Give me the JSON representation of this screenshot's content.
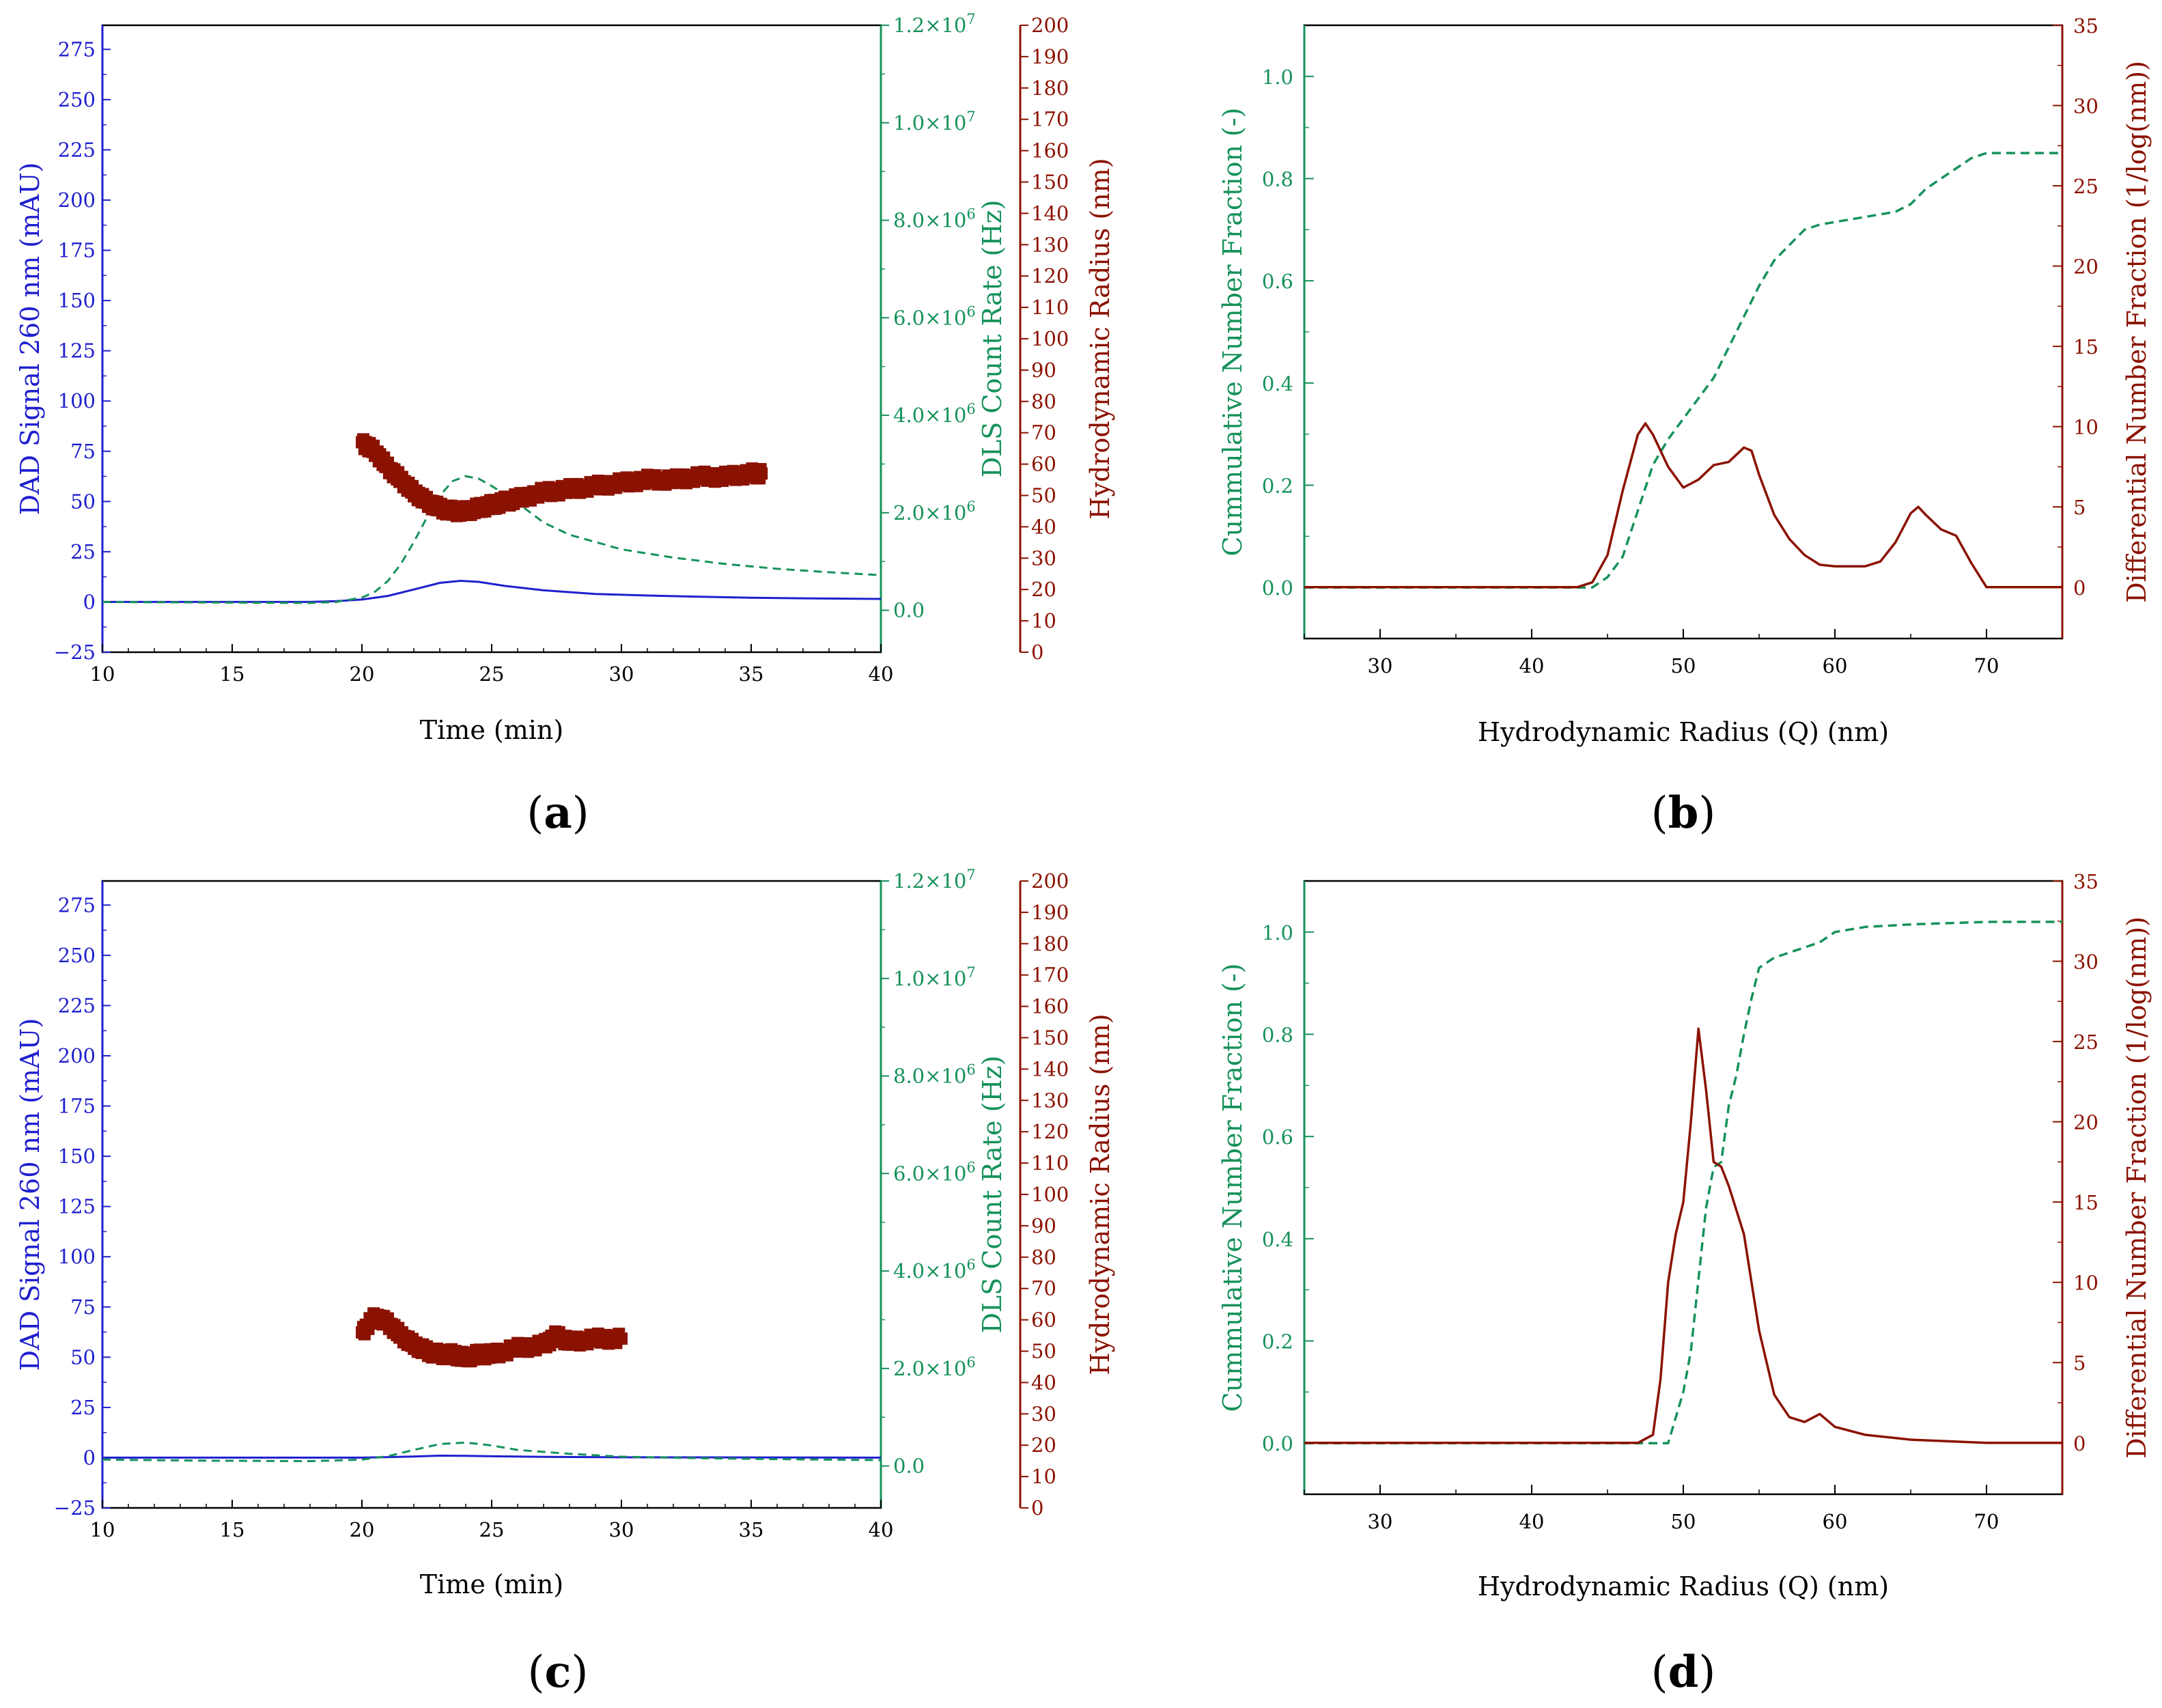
{
  "colors": {
    "blue": "#1f1fcf",
    "green": "#16925a",
    "red": "#8b1200",
    "axis": "#000000"
  },
  "panels": [
    {
      "id": "a",
      "label_open": "(",
      "label_letter": "a",
      "label_close": ")",
      "xlabel": "Time (min)",
      "ylabel_left": "DAD Signal 260 nm (mAU)",
      "ylabel_mid": "DLS Count Rate (Hz)",
      "ylabel_right": "Hydrodynamic Radius (nm)"
    },
    {
      "id": "b",
      "label_open": "(",
      "label_letter": "b",
      "label_close": ")",
      "xlabel": "Hydrodynamic Radius (Q) (nm)",
      "ylabel_left": "Cummulative Number Fraction (-)",
      "ylabel_right": "Differential Number Fraction (1/log(nm))"
    },
    {
      "id": "c",
      "label_open": "(",
      "label_letter": "c",
      "label_close": ")",
      "xlabel": "Time (min)",
      "ylabel_left": "DAD Signal 260 nm (mAU)",
      "ylabel_mid": "DLS Count Rate (Hz)",
      "ylabel_right": "Hydrodynamic Radius (nm)"
    },
    {
      "id": "d",
      "label_open": "(",
      "label_letter": "d",
      "label_close": ")",
      "xlabel": "Hydrodynamic Radius (Q) (nm)",
      "ylabel_left": "Cummulative Number Fraction (-)",
      "ylabel_right": "Differential Number Fraction (1/log(nm))"
    }
  ],
  "chart_data": [
    {
      "panel": "a",
      "type": "line",
      "x": {
        "label": "Time (min)",
        "lim": [
          10,
          40
        ],
        "ticks": [
          10,
          15,
          20,
          25,
          30,
          35,
          40
        ],
        "tick_labels": [
          "10",
          "15",
          "20",
          "25",
          "30",
          "35",
          "40"
        ]
      },
      "y_left": {
        "label": "DAD Signal 260 nm (mAU)",
        "lim": [
          -25,
          287
        ],
        "ticks": [
          -25,
          0,
          25,
          50,
          75,
          100,
          125,
          150,
          175,
          200,
          225,
          250,
          275
        ],
        "tick_labels": [
          "−25",
          "0",
          "25",
          "50",
          "75",
          "100",
          "125",
          "150",
          "175",
          "200",
          "225",
          "250",
          "275"
        ]
      },
      "y_mid": {
        "label": "DLS Count Rate (Hz)",
        "lim": [
          -860000,
          12000000
        ],
        "ticks": [
          0,
          2000000,
          4000000,
          6000000,
          8000000,
          10000000,
          12000000
        ],
        "tick_mant": [
          "0.0",
          "2.0",
          "4.0",
          "6.0",
          "8.0",
          "1.0",
          "1.2"
        ],
        "tick_exp": [
          "",
          "6",
          "6",
          "6",
          "6",
          "7",
          "7"
        ]
      },
      "y_right": {
        "label": "Hydrodynamic Radius (nm)",
        "lim": [
          0,
          200
        ],
        "ticks": [
          0,
          10,
          20,
          30,
          40,
          50,
          60,
          70,
          80,
          90,
          100,
          110,
          120,
          130,
          140,
          150,
          160,
          170,
          180,
          190,
          200
        ],
        "tick_labels": [
          "0",
          "10",
          "20",
          "30",
          "40",
          "50",
          "60",
          "70",
          "80",
          "90",
          "100",
          "110",
          "120",
          "130",
          "140",
          "150",
          "160",
          "170",
          "180",
          "190",
          "200"
        ]
      },
      "series": [
        {
          "name": "DAD Signal 260 nm",
          "axis": "left",
          "style": "solid",
          "color": "blue",
          "x": [
            10,
            18,
            19,
            20,
            21,
            22,
            23,
            23.8,
            24.5,
            25.5,
            27,
            29,
            31,
            33,
            35,
            37,
            40
          ],
          "y": [
            0,
            0,
            0.4,
            1.2,
            3,
            6.2,
            9.5,
            10.5,
            10,
            8,
            5.8,
            4,
            3.2,
            2.6,
            2.1,
            1.8,
            1.5
          ]
        },
        {
          "name": "DLS Count Rate",
          "axis": "mid",
          "style": "dashed",
          "color": "green",
          "x": [
            10,
            14,
            18,
            19,
            20,
            20.5,
            21,
            21.5,
            22,
            22.5,
            23,
            23.5,
            24,
            24.5,
            25,
            25.5,
            26,
            26.5,
            27,
            28,
            29,
            30,
            32,
            34,
            36,
            38,
            40
          ],
          "y": [
            170000,
            160000,
            150000,
            170000,
            260000,
            380000,
            600000,
            950000,
            1400000,
            1900000,
            2350000,
            2650000,
            2750000,
            2700000,
            2550000,
            2380000,
            2200000,
            2000000,
            1800000,
            1550000,
            1400000,
            1250000,
            1080000,
            950000,
            850000,
            780000,
            720000
          ]
        },
        {
          "name": "Hydrodynamic Radius",
          "axis": "right",
          "style": "markers",
          "color": "red",
          "x": [
            20,
            20.5,
            21,
            21.5,
            22,
            22.5,
            23,
            23.5,
            24,
            24.5,
            25,
            25.5,
            26,
            27,
            28,
            29,
            30,
            31,
            32,
            33,
            34,
            35,
            35.4
          ],
          "y": [
            67,
            64,
            59,
            55,
            51,
            48,
            46,
            45,
            45,
            46,
            47,
            48,
            49,
            51,
            52,
            53,
            54,
            55,
            55,
            56,
            56,
            57,
            57
          ]
        }
      ]
    },
    {
      "panel": "b",
      "type": "line",
      "x": {
        "label": "Hydrodynamic Radius (Q) (nm)",
        "lim": [
          25,
          75
        ],
        "ticks": [
          30,
          40,
          50,
          60,
          70
        ],
        "tick_labels": [
          "30",
          "40",
          "50",
          "60",
          "70"
        ]
      },
      "y_left": {
        "label": "Cummulative Number Fraction (-)",
        "lim": [
          -0.1,
          1.1
        ],
        "ticks": [
          0,
          0.2,
          0.4,
          0.6,
          0.8,
          1.0
        ],
        "tick_labels": [
          "0.0",
          "0.2",
          "0.4",
          "0.6",
          "0.8",
          "1.0"
        ]
      },
      "y_right": {
        "label": "Differential Number Fraction (1/log(nm))",
        "lim": [
          -3.2,
          35
        ],
        "ticks": [
          0,
          5,
          10,
          15,
          20,
          25,
          30,
          35
        ],
        "tick_labels": [
          "0",
          "5",
          "10",
          "15",
          "20",
          "25",
          "30",
          "35"
        ]
      },
      "series": [
        {
          "name": "Cumulative number fraction",
          "axis": "left",
          "style": "dashed",
          "color": "green",
          "x": [
            25,
            44,
            45,
            46,
            47,
            48,
            49,
            50,
            51,
            52,
            53,
            54,
            55,
            56,
            57,
            58,
            59,
            60,
            62,
            64,
            65,
            66,
            67,
            68,
            69,
            70,
            72,
            75
          ],
          "y": [
            0,
            0,
            0.02,
            0.06,
            0.15,
            0.24,
            0.29,
            0.33,
            0.37,
            0.41,
            0.47,
            0.53,
            0.59,
            0.64,
            0.67,
            0.7,
            0.71,
            0.715,
            0.725,
            0.735,
            0.75,
            0.78,
            0.8,
            0.82,
            0.84,
            0.85,
            0.85,
            0.85
          ]
        },
        {
          "name": "Differential number fraction",
          "axis": "right",
          "style": "solid",
          "color": "red",
          "x": [
            25,
            43,
            44,
            45,
            46,
            47,
            47.5,
            48,
            49,
            50,
            51,
            52,
            53,
            54,
            54.5,
            55,
            56,
            57,
            58,
            59,
            60,
            62,
            63,
            64,
            65,
            65.5,
            66,
            67,
            68,
            69,
            70,
            75
          ],
          "y": [
            0,
            0,
            0.3,
            2,
            6,
            9.5,
            10.2,
            9.5,
            7.5,
            6.2,
            6.7,
            7.6,
            7.8,
            8.7,
            8.5,
            7,
            4.5,
            3,
            2,
            1.4,
            1.3,
            1.3,
            1.6,
            2.8,
            4.6,
            5,
            4.5,
            3.6,
            3.2,
            1.5,
            0,
            0
          ]
        }
      ]
    },
    {
      "panel": "c",
      "type": "line",
      "x": {
        "label": "Time (min)",
        "lim": [
          10,
          40
        ],
        "ticks": [
          10,
          15,
          20,
          25,
          30,
          35,
          40
        ],
        "tick_labels": [
          "10",
          "15",
          "20",
          "25",
          "30",
          "35",
          "40"
        ]
      },
      "y_left": {
        "label": "DAD Signal 260 nm (mAU)",
        "lim": [
          -25,
          287
        ],
        "ticks": [
          -25,
          0,
          25,
          50,
          75,
          100,
          125,
          150,
          175,
          200,
          225,
          250,
          275
        ],
        "tick_labels": [
          "−25",
          "0",
          "25",
          "50",
          "75",
          "100",
          "125",
          "150",
          "175",
          "200",
          "225",
          "250",
          "275"
        ]
      },
      "y_mid": {
        "label": "DLS Count Rate (Hz)",
        "lim": [
          -860000,
          12000000
        ],
        "ticks": [
          0,
          2000000,
          4000000,
          6000000,
          8000000,
          10000000,
          12000000
        ],
        "tick_mant": [
          "0.0",
          "2.0",
          "4.0",
          "6.0",
          "8.0",
          "1.0",
          "1.2"
        ],
        "tick_exp": [
          "",
          "6",
          "6",
          "6",
          "6",
          "7",
          "7"
        ]
      },
      "y_right": {
        "label": "Hydrodynamic Radius (nm)",
        "lim": [
          0,
          200
        ],
        "ticks": [
          0,
          10,
          20,
          30,
          40,
          50,
          60,
          70,
          80,
          90,
          100,
          110,
          120,
          130,
          140,
          150,
          160,
          170,
          180,
          190,
          200
        ],
        "tick_labels": [
          "0",
          "10",
          "20",
          "30",
          "40",
          "50",
          "60",
          "70",
          "80",
          "90",
          "100",
          "110",
          "120",
          "130",
          "140",
          "150",
          "160",
          "170",
          "180",
          "190",
          "200"
        ]
      },
      "series": [
        {
          "name": "DAD Signal 260 nm",
          "axis": "left",
          "style": "solid",
          "color": "blue",
          "x": [
            10,
            20,
            21,
            22,
            23,
            24,
            25,
            27,
            30,
            35,
            40
          ],
          "y": [
            0,
            0,
            0.3,
            0.6,
            1,
            0.9,
            0.7,
            0.4,
            0.2,
            0.1,
            0
          ]
        },
        {
          "name": "DLS Count Rate",
          "axis": "mid",
          "style": "dashed",
          "color": "green",
          "x": [
            10,
            14,
            18,
            20,
            21,
            22,
            23,
            24,
            25,
            26,
            28,
            30,
            33,
            36,
            40
          ],
          "y": [
            130000,
            110000,
            100000,
            130000,
            200000,
            330000,
            450000,
            480000,
            420000,
            330000,
            250000,
            190000,
            160000,
            140000,
            120000
          ]
        },
        {
          "name": "Hydrodynamic Radius",
          "axis": "right",
          "style": "markers",
          "color": "red",
          "x": [
            20,
            20.5,
            21,
            21.5,
            22,
            22.5,
            23,
            23.5,
            24,
            24.5,
            25,
            26,
            27,
            27.5,
            28,
            29,
            30
          ],
          "y": [
            56,
            61,
            59,
            55,
            52,
            50,
            49,
            49,
            48,
            49,
            49,
            51,
            52,
            55,
            53,
            54,
            54
          ]
        }
      ]
    },
    {
      "panel": "d",
      "type": "line",
      "x": {
        "label": "Hydrodynamic Radius (Q) (nm)",
        "lim": [
          25,
          75
        ],
        "ticks": [
          30,
          40,
          50,
          60,
          70
        ],
        "tick_labels": [
          "30",
          "40",
          "50",
          "60",
          "70"
        ]
      },
      "y_left": {
        "label": "Cummulative Number Fraction (-)",
        "lim": [
          -0.1,
          1.1
        ],
        "ticks": [
          0,
          0.2,
          0.4,
          0.6,
          0.8,
          1.0
        ],
        "tick_labels": [
          "0.0",
          "0.2",
          "0.4",
          "0.6",
          "0.8",
          "1.0"
        ]
      },
      "y_right": {
        "label": "Differential Number Fraction (1/log(nm))",
        "lim": [
          -3.2,
          35
        ],
        "ticks": [
          0,
          5,
          10,
          15,
          20,
          25,
          30,
          35
        ],
        "tick_labels": [
          "0",
          "5",
          "10",
          "15",
          "20",
          "25",
          "30",
          "35"
        ]
      },
      "series": [
        {
          "name": "Cumulative number fraction",
          "axis": "left",
          "style": "dashed",
          "color": "green",
          "x": [
            25,
            49,
            49.5,
            50,
            50.5,
            51,
            51.5,
            52,
            52.5,
            53,
            53.5,
            54,
            54.5,
            55,
            56,
            57,
            58,
            59,
            60,
            62,
            65,
            70,
            75
          ],
          "y": [
            0,
            0,
            0.05,
            0.1,
            0.18,
            0.32,
            0.46,
            0.54,
            0.55,
            0.66,
            0.72,
            0.8,
            0.87,
            0.93,
            0.95,
            0.96,
            0.97,
            0.98,
            1.0,
            1.01,
            1.015,
            1.02,
            1.02
          ]
        },
        {
          "name": "Differential number fraction",
          "axis": "right",
          "style": "solid",
          "color": "red",
          "x": [
            25,
            47,
            48,
            48.5,
            49,
            49.5,
            50,
            50.5,
            51,
            51.5,
            52,
            52.5,
            53,
            54,
            55,
            56,
            57,
            58,
            59,
            60,
            62,
            65,
            70,
            75
          ],
          "y": [
            0,
            0,
            0.5,
            4,
            10,
            13,
            15,
            20,
            25.8,
            22,
            17.5,
            17.2,
            16,
            13,
            7,
            3,
            1.6,
            1.3,
            1.8,
            1,
            0.5,
            0.2,
            0,
            0
          ]
        }
      ]
    }
  ]
}
